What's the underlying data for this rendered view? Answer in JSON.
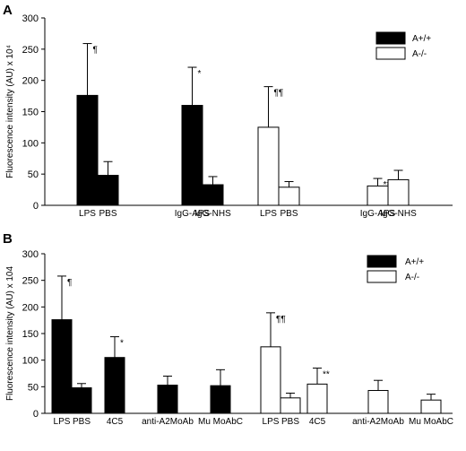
{
  "chart_data": [
    {
      "type": "bar",
      "panel": "A",
      "ylabel": "Fluorescence intensity (AU) x 10⁴",
      "ylim": [
        0,
        300
      ],
      "yticks": [
        0,
        50,
        100,
        150,
        200,
        250,
        300
      ],
      "grid": false,
      "legend_placement": "top-right",
      "legend": [
        {
          "label": "A+/+",
          "color": "#000000"
        },
        {
          "label": "A-/-",
          "color": "#ffffff"
        }
      ],
      "groups": [
        {
          "genotype": "A+/+",
          "bars": [
            {
              "label": "LPS",
              "value": 176,
              "error": 83,
              "sig": "¶"
            },
            {
              "label": "PBS",
              "value": 48,
              "error": 22,
              "sig": ""
            }
          ]
        },
        {
          "genotype": "A+/+",
          "bars": [
            {
              "label": "IgG-APS",
              "value": 160,
              "error": 61,
              "sig": "*"
            },
            {
              "label": "IgG-NHS",
              "value": 33,
              "error": 13,
              "sig": ""
            }
          ]
        },
        {
          "genotype": "A-/-",
          "bars": [
            {
              "label": "LPS",
              "value": 125,
              "error": 65,
              "sig": "¶¶"
            },
            {
              "label": "PBS",
              "value": 29,
              "error": 9,
              "sig": ""
            }
          ]
        },
        {
          "genotype": "A-/-",
          "bars": [
            {
              "label": "IgG-APS",
              "value": 31,
              "error": 12,
              "sig": "**"
            },
            {
              "label": "IgG-NHS",
              "value": 41,
              "error": 15,
              "sig": ""
            }
          ]
        }
      ]
    },
    {
      "type": "bar",
      "panel": "B",
      "ylabel": "Fluorescence intensity (AU) x 104",
      "ylim": [
        0,
        300
      ],
      "yticks": [
        0,
        50,
        100,
        150,
        200,
        250,
        300
      ],
      "grid": false,
      "legend_placement": "top-right",
      "legend": [
        {
          "label": "A+/+",
          "color": "#000000"
        },
        {
          "label": "A-/-",
          "color": "#ffffff"
        }
      ],
      "groups": [
        {
          "genotype": "A+/+",
          "bars": [
            {
              "label": "LPS",
              "value": 176,
              "error": 82,
              "sig": "¶"
            },
            {
              "label": "PBS",
              "value": 48,
              "error": 8,
              "sig": ""
            }
          ]
        },
        {
          "genotype": "A+/+",
          "bars": [
            {
              "label": "4C5",
              "value": 105,
              "error": 39,
              "sig": "*"
            }
          ]
        },
        {
          "genotype": "A+/+",
          "bars": [
            {
              "label": "anti-A2MoAb",
              "value": 53,
              "error": 17,
              "sig": ""
            }
          ]
        },
        {
          "genotype": "A+/+",
          "bars": [
            {
              "label": "Mu MoAbC",
              "value": 52,
              "error": 30,
              "sig": ""
            }
          ]
        },
        {
          "genotype": "A-/-",
          "bars": [
            {
              "label": "LPS",
              "value": 125,
              "error": 64,
              "sig": "¶¶"
            },
            {
              "label": "PBS",
              "value": 29,
              "error": 9,
              "sig": ""
            }
          ]
        },
        {
          "genotype": "A-/-",
          "bars": [
            {
              "label": "4C5",
              "value": 55,
              "error": 30,
              "sig": "**"
            }
          ]
        },
        {
          "genotype": "A-/-",
          "bars": [
            {
              "label": "anti-A2MoAb",
              "value": 43,
              "error": 19,
              "sig": ""
            }
          ]
        },
        {
          "genotype": "A-/-",
          "bars": [
            {
              "label": "Mu MoAbC",
              "value": 25,
              "error": 11,
              "sig": ""
            }
          ]
        }
      ]
    }
  ]
}
